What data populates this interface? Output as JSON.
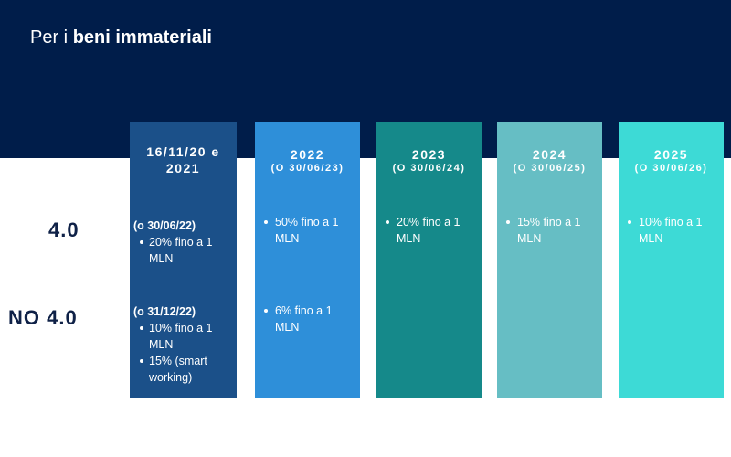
{
  "title": {
    "prefix": "Per i ",
    "bold": "beni immateriali"
  },
  "rows": {
    "r40": "4.0",
    "no40": "NO 4.0"
  },
  "columns": [
    {
      "year": "16/11/20 e 2021",
      "sub": "",
      "color": "#1b5089",
      "r40": {
        "cond": "(o 30/06/22)",
        "items": [
          "20% fino a 1 MLN"
        ]
      },
      "no40": {
        "cond": "(o 31/12/22)",
        "items": [
          "10% fino a 1 MLN",
          "15% (smart working)"
        ]
      }
    },
    {
      "year": "2022",
      "sub": "(O 30/06/23)",
      "color": "#2e8fd9",
      "r40": {
        "items": [
          "50% fino a 1 MLN"
        ]
      },
      "no40": {
        "items": [
          "6% fino a 1 MLN"
        ]
      }
    },
    {
      "year": "2023",
      "sub": "(O 30/06/24)",
      "color": "#15898a",
      "r40": {
        "items": [
          "20%  fino a 1 MLN"
        ]
      }
    },
    {
      "year": "2024",
      "sub": "(O 30/06/25)",
      "color": "#66bec4",
      "r40": {
        "items": [
          "15%  fino a 1 MLN"
        ]
      }
    },
    {
      "year": "2025",
      "sub": "(O 30/06/26)",
      "color": "#3ddad6",
      "r40": {
        "items": [
          "10% fino a 1 MLN"
        ]
      }
    }
  ]
}
